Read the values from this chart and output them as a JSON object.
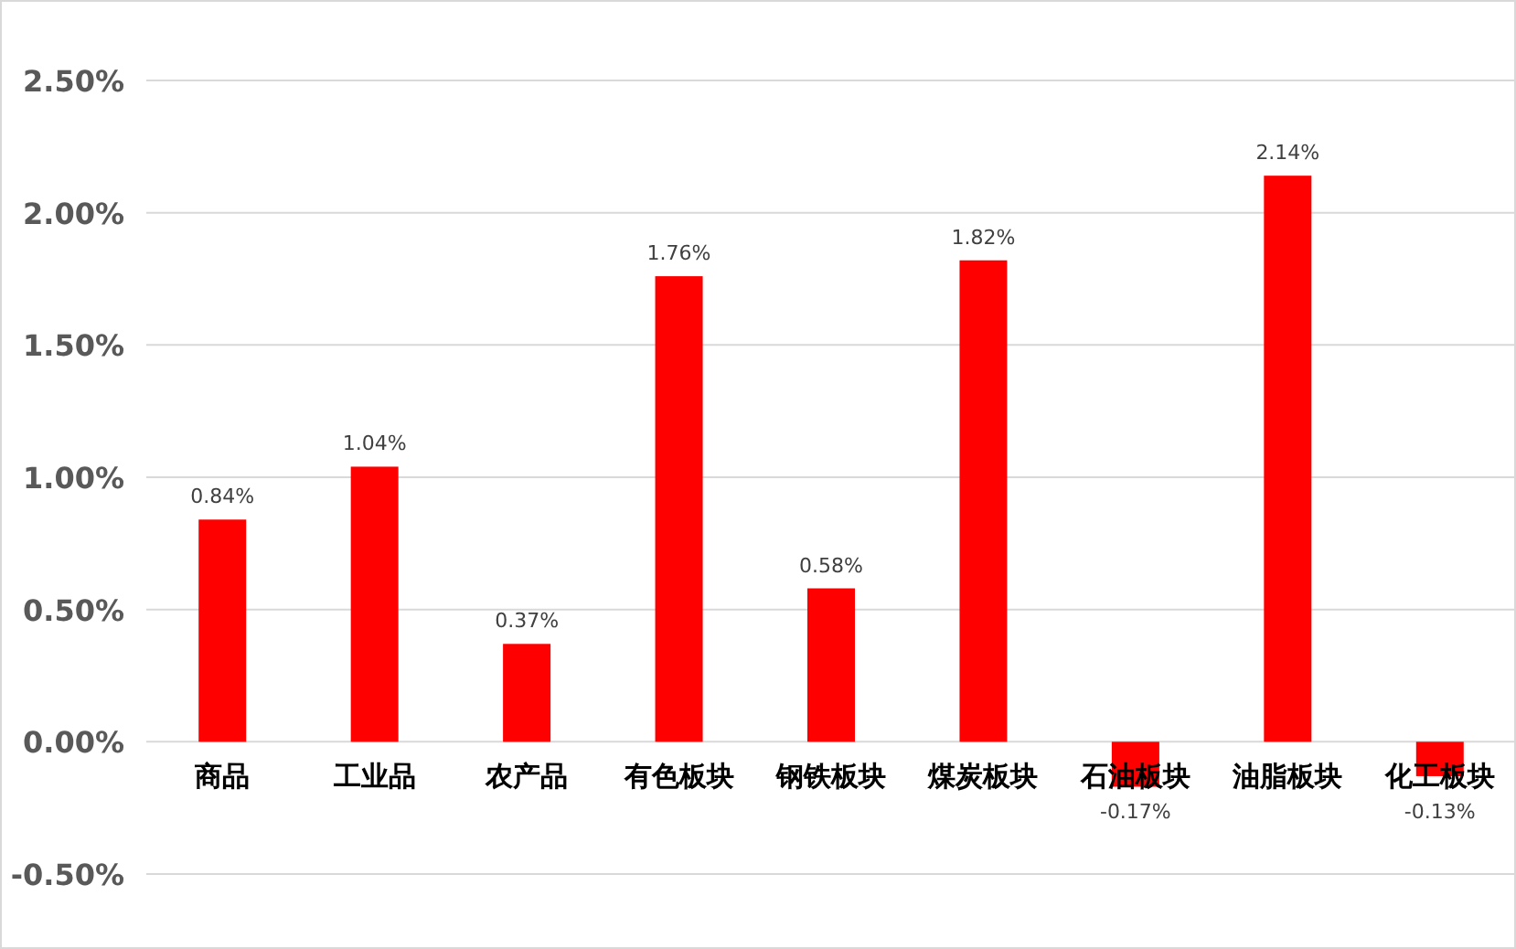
{
  "chart_data": {
    "type": "bar",
    "categories": [
      "商品",
      "工业品",
      "农产品",
      "有色板块",
      "钢铁板块",
      "煤炭板块",
      "石油板块",
      "油脂板块",
      "化工板块"
    ],
    "values": [
      0.84,
      1.04,
      0.37,
      1.76,
      0.58,
      1.82,
      -0.17,
      2.14,
      -0.13
    ],
    "value_labels": [
      "0.84%",
      "1.04%",
      "0.37%",
      "1.76%",
      "0.58%",
      "1.82%",
      "-0.17%",
      "2.14%",
      "-0.13%"
    ],
    "color": "#ff0000",
    "ylim": [
      -0.5,
      2.5
    ],
    "yticks": [
      {
        "value": -0.5,
        "label": "-0.50%"
      },
      {
        "value": 0,
        "label": "0.00%"
      },
      {
        "value": 0.5,
        "label": "0.50%"
      },
      {
        "value": 1,
        "label": "1.00%"
      },
      {
        "value": 1.5,
        "label": "1.50%"
      },
      {
        "value": 2,
        "label": "2.00%"
      },
      {
        "value": 2.5,
        "label": "2.50%"
      }
    ],
    "grid": "y"
  }
}
